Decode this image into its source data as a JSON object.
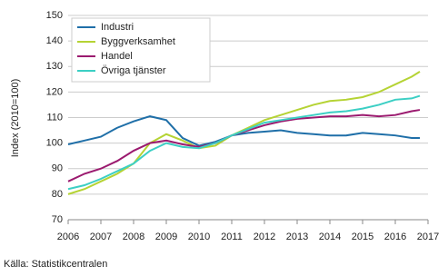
{
  "chart_data": {
    "type": "line",
    "ylabel": "Index (2010=100)",
    "source": "Källa: Statistikcentralen",
    "x": [
      2006,
      2006.5,
      2007,
      2007.5,
      2008,
      2008.5,
      2009,
      2009.5,
      2010,
      2010.5,
      2011,
      2011.5,
      2012,
      2012.5,
      2013,
      2013.5,
      2014,
      2014.5,
      2015,
      2015.5,
      2016,
      2016.5,
      2016.75
    ],
    "series": [
      {
        "name": "Industri",
        "color": "#1f6fa8",
        "values": [
          99.5,
          101,
          102.5,
          106,
          108.5,
          110.5,
          109,
          102,
          99,
          100.5,
          103,
          104,
          104.5,
          105,
          104,
          103.5,
          103,
          103,
          104,
          103.5,
          103,
          102,
          102
        ]
      },
      {
        "name": "Byggverksamhet",
        "color": "#b5d334",
        "values": [
          80,
          82,
          85,
          88,
          92,
          100,
          103.5,
          101,
          98,
          99,
          103,
          106,
          109,
          111,
          113,
          115,
          116.5,
          117,
          118,
          120,
          123,
          126,
          128
        ]
      },
      {
        "name": "Handel",
        "color": "#9b1a6f",
        "values": [
          85,
          88,
          90,
          93,
          97,
          100,
          101,
          99.5,
          98.5,
          100,
          103,
          105,
          107,
          108.5,
          109.5,
          110,
          110.5,
          110.5,
          111,
          110.5,
          111,
          112.5,
          113
        ]
      },
      {
        "name": "Övriga tjänster",
        "color": "#3ccfc4",
        "values": [
          82,
          83.5,
          86,
          89,
          92,
          97,
          100,
          98.5,
          98,
          100,
          103,
          105.5,
          108,
          109,
          110,
          111,
          112,
          112.5,
          113.5,
          115,
          117,
          117.5,
          118.5
        ]
      }
    ],
    "xlim": [
      2006,
      2017
    ],
    "xticks": [
      2006,
      2007,
      2008,
      2009,
      2010,
      2011,
      2012,
      2013,
      2014,
      2015,
      2016,
      2017
    ],
    "ylim": [
      70,
      150
    ],
    "yticks": [
      70,
      80,
      90,
      100,
      110,
      120,
      130,
      140,
      150
    ],
    "grid": true,
    "legend": "top-left"
  }
}
